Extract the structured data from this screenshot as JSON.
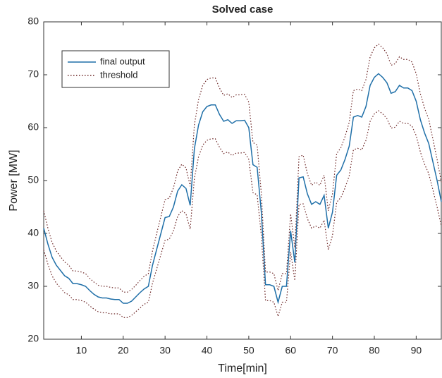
{
  "chart_data": {
    "type": "line",
    "title": "Solved case",
    "x_label": "Time[min]",
    "y_label": "Power [MW]",
    "x": [
      1,
      2,
      3,
      4,
      5,
      6,
      7,
      8,
      9,
      10,
      11,
      12,
      13,
      14,
      15,
      16,
      17,
      18,
      19,
      20,
      21,
      22,
      23,
      24,
      25,
      26,
      27,
      28,
      29,
      30,
      31,
      32,
      33,
      34,
      35,
      36,
      37,
      38,
      39,
      40,
      41,
      42,
      43,
      44,
      45,
      46,
      47,
      48,
      49,
      50,
      51,
      52,
      53,
      54,
      55,
      56,
      57,
      58,
      59,
      60,
      61,
      62,
      63,
      64,
      65,
      66,
      67,
      68,
      69,
      70,
      71,
      72,
      73,
      74,
      75,
      76,
      77,
      78,
      79,
      80,
      81,
      82,
      83,
      84,
      85,
      86,
      87,
      88,
      89,
      90,
      91,
      92,
      93,
      94,
      95,
      96
    ],
    "series": [
      {
        "name": "final output",
        "color": "#1f6fa8",
        "style": "solid",
        "values": [
          41,
          38,
          35.5,
          34,
          33,
          32,
          31.5,
          30.5,
          30.5,
          30.3,
          30,
          29.2,
          28.5,
          28,
          27.8,
          27.8,
          27.6,
          27.5,
          27.5,
          26.8,
          26.8,
          27.2,
          28,
          28.8,
          29.5,
          30,
          34,
          37,
          40,
          43,
          43.2,
          45,
          48,
          49.2,
          48.5,
          45.3,
          56,
          60.5,
          63,
          64,
          64.3,
          64.3,
          62.5,
          61.2,
          61.5,
          60.8,
          61.3,
          61.3,
          61.4,
          60,
          53,
          52.5,
          44,
          30.3,
          30.3,
          30,
          27,
          30,
          30,
          40.5,
          34.5,
          50.5,
          50.7,
          47.5,
          45.5,
          46,
          45.5,
          47.2,
          41,
          44,
          51,
          52,
          54,
          56.5,
          62,
          62.3,
          62,
          64,
          68,
          69.5,
          70.2,
          69.5,
          68.5,
          66.5,
          66.8,
          68,
          67.5,
          67.5,
          67,
          65,
          61.5,
          59,
          57,
          53.5,
          50,
          46
        ]
      },
      {
        "name": "threshold",
        "color": "#6b2424",
        "style": "dotted",
        "values": [
          44.3,
          41,
          38.3,
          36.7,
          35.6,
          34.6,
          34,
          32.9,
          32.9,
          32.7,
          32.4,
          31.5,
          30.8,
          30.2,
          30,
          30,
          29.8,
          29.7,
          29.7,
          28.9,
          28.9,
          29.4,
          30.2,
          31.1,
          31.9,
          32.4,
          36.7,
          40,
          43.2,
          46.4,
          46.7,
          48.6,
          51.8,
          53.1,
          52.4,
          48.9,
          60.5,
          65.3,
          68,
          69.1,
          69.4,
          69.4,
          67.5,
          66.1,
          66.4,
          65.7,
          66.2,
          66.2,
          66.3,
          64.8,
          57.2,
          56.7,
          47.5,
          32.7,
          32.7,
          32.4,
          29.2,
          32.4,
          32.4,
          43.7,
          37.3,
          54.5,
          54.8,
          51.3,
          49.1,
          49.7,
          49.1,
          51,
          44.3,
          47.5,
          55.1,
          56.2,
          58.3,
          61,
          67,
          67.3,
          67,
          69.1,
          73.4,
          75.1,
          75.8,
          75.1,
          74,
          71.8,
          72.1,
          73.4,
          72.9,
          72.9,
          72.4,
          70.2,
          66.4,
          63.7,
          61.6,
          57.8,
          54,
          49.7
        ],
        "values_lower": [
          36.9,
          34.2,
          32,
          30.6,
          29.7,
          28.8,
          28.4,
          27.5,
          27.5,
          27.3,
          27,
          26.3,
          25.7,
          25.2,
          25,
          25,
          24.8,
          24.8,
          24.8,
          24.1,
          24.1,
          24.5,
          25.2,
          25.9,
          26.6,
          27,
          30.6,
          33.3,
          36,
          38.7,
          38.9,
          40.5,
          43.2,
          44.3,
          43.7,
          40.8,
          50.4,
          54.5,
          56.7,
          57.6,
          57.9,
          57.9,
          56.3,
          55.1,
          55.4,
          54.7,
          55.2,
          55.2,
          55.3,
          54,
          47.7,
          47.3,
          39.6,
          27.3,
          27.3,
          27,
          24.3,
          27,
          27,
          36.5,
          31.1,
          45.5,
          45.6,
          42.8,
          41,
          41.4,
          41,
          42.5,
          36.9,
          39.6,
          45.9,
          46.8,
          48.6,
          50.9,
          55.8,
          56.1,
          55.8,
          57.6,
          61.2,
          62.6,
          63.2,
          62.6,
          61.7,
          59.9,
          60.1,
          61.2,
          60.8,
          60.8,
          60.3,
          58.5,
          55.4,
          53.1,
          51.3,
          48.2,
          45,
          41.4
        ]
      }
    ],
    "xlim": [
      1,
      96
    ],
    "xticks": [
      10,
      20,
      30,
      40,
      50,
      60,
      70,
      80,
      90
    ],
    "ylim": [
      20,
      80
    ],
    "yticks": [
      20,
      30,
      40,
      50,
      60,
      70,
      80
    ],
    "legend": "upper-left",
    "grid": false
  }
}
